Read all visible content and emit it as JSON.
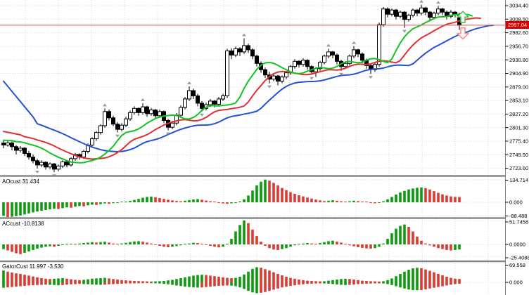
{
  "colors": {
    "background": "#ffffff",
    "grid": "#d9d9d9",
    "axis_line": "#808080",
    "separator": "#828282",
    "text": "#000000",
    "candle_border": "#000000",
    "candle_up_fill": "#ffffff",
    "candle_down_fill": "#000000",
    "jaw_blue": "#2353d4",
    "teeth_red": "#e03030",
    "lips_green": "#12c421",
    "hist_up": "#0d9c0d",
    "hist_down": "#df3a32",
    "price_line": "#e05252",
    "price_tag_bg": "#d40000",
    "price_tag_text": "#ffffff",
    "fractal": "#8a8a8a",
    "arrow_up": "#52c15c",
    "arrow_up_fill": "#f2fff2",
    "arrow_down": "#f49090",
    "arrow_down_fill": "#fff4f4"
  },
  "price_axis": {
    "tick_labels": [
      "3034.40",
      "3008.50",
      "2982.60",
      "2956.70",
      "2930.80",
      "2904.90",
      "2879.00",
      "2853.10",
      "2827.20",
      "2801.30",
      "2775.40",
      "2749.50",
      "2723.60"
    ],
    "current_price_label": "2997.04",
    "current_price": 2997.04
  },
  "indicators": {
    "ao": {
      "label": "AOcust",
      "value": "31.434",
      "axis_labels": [
        "134.714",
        "0.000",
        "-88.488"
      ]
    },
    "ac": {
      "label": "ACcust",
      "value": "-10.8138",
      "axis_labels": [
        "51.7458",
        "0.0000",
        "-25.4088"
      ]
    },
    "gator": {
      "label": "GatorCust",
      "value": "11.997 -3.530",
      "axis_labels": [
        "69.558",
        "0.000"
      ]
    }
  },
  "chart_data": {
    "type": "candlestick",
    "title": "",
    "ylim": [
      2716,
      3036
    ],
    "grid": true,
    "candles_ohlc": [
      [
        2772,
        2776,
        2762,
        2768
      ],
      [
        2768,
        2778,
        2765,
        2772
      ],
      [
        2772,
        2775,
        2758,
        2765
      ],
      [
        2765,
        2768,
        2750,
        2758
      ],
      [
        2758,
        2766,
        2754,
        2762
      ],
      [
        2762,
        2764,
        2747,
        2752
      ],
      [
        2752,
        2757,
        2740,
        2745
      ],
      [
        2745,
        2750,
        2733,
        2738
      ],
      [
        2738,
        2742,
        2723,
        2730
      ],
      [
        2730,
        2739,
        2726,
        2735
      ],
      [
        2735,
        2737,
        2721,
        2726
      ],
      [
        2726,
        2735,
        2722,
        2732
      ],
      [
        2732,
        2734,
        2716,
        2722
      ],
      [
        2722,
        2731,
        2718,
        2728
      ],
      [
        2728,
        2739,
        2724,
        2736
      ],
      [
        2736,
        2738,
        2725,
        2730
      ],
      [
        2730,
        2745,
        2727,
        2742
      ],
      [
        2742,
        2753,
        2738,
        2750
      ],
      [
        2750,
        2752,
        2740,
        2745
      ],
      [
        2745,
        2759,
        2742,
        2756
      ],
      [
        2756,
        2771,
        2752,
        2768
      ],
      [
        2768,
        2783,
        2764,
        2780
      ],
      [
        2780,
        2795,
        2776,
        2792
      ],
      [
        2792,
        2808,
        2788,
        2805
      ],
      [
        2805,
        2838,
        2801,
        2832
      ],
      [
        2832,
        2836,
        2815,
        2820
      ],
      [
        2820,
        2824,
        2804,
        2808
      ],
      [
        2808,
        2812,
        2792,
        2798
      ],
      [
        2798,
        2810,
        2794,
        2806
      ],
      [
        2806,
        2822,
        2802,
        2818
      ],
      [
        2818,
        2834,
        2814,
        2830
      ],
      [
        2830,
        2842,
        2826,
        2838
      ],
      [
        2838,
        2840,
        2824,
        2830
      ],
      [
        2830,
        2848,
        2826,
        2841
      ],
      [
        2841,
        2843,
        2822,
        2828
      ],
      [
        2828,
        2839,
        2824,
        2835
      ],
      [
        2835,
        2837,
        2819,
        2824
      ],
      [
        2824,
        2836,
        2820,
        2832
      ],
      [
        2832,
        2834,
        2810,
        2815
      ],
      [
        2815,
        2818,
        2796,
        2802
      ],
      [
        2802,
        2814,
        2798,
        2810
      ],
      [
        2810,
        2829,
        2806,
        2825
      ],
      [
        2825,
        2844,
        2821,
        2840
      ],
      [
        2840,
        2860,
        2836,
        2856
      ],
      [
        2856,
        2880,
        2852,
        2872
      ],
      [
        2872,
        2876,
        2856,
        2862
      ],
      [
        2862,
        2866,
        2842,
        2848
      ],
      [
        2848,
        2852,
        2832,
        2838
      ],
      [
        2838,
        2849,
        2834,
        2845
      ],
      [
        2845,
        2856,
        2841,
        2852
      ],
      [
        2852,
        2854,
        2840,
        2846
      ],
      [
        2846,
        2860,
        2842,
        2856
      ],
      [
        2856,
        2866,
        2852,
        2862
      ],
      [
        2862,
        2952,
        2858,
        2948
      ],
      [
        2948,
        2953,
        2932,
        2940
      ],
      [
        2940,
        2956,
        2936,
        2952
      ],
      [
        2952,
        2955,
        2938,
        2946
      ],
      [
        2946,
        2972,
        2942,
        2958
      ],
      [
        2958,
        2962,
        2944,
        2950
      ],
      [
        2950,
        2953,
        2932,
        2938
      ],
      [
        2938,
        2941,
        2918,
        2924
      ],
      [
        2924,
        2928,
        2906,
        2912
      ],
      [
        2912,
        2916,
        2896,
        2902
      ],
      [
        2902,
        2908,
        2886,
        2894
      ],
      [
        2894,
        2904,
        2890,
        2900
      ],
      [
        2900,
        2902,
        2882,
        2890
      ],
      [
        2890,
        2901,
        2886,
        2898
      ],
      [
        2898,
        2909,
        2894,
        2906
      ],
      [
        2906,
        2921,
        2902,
        2918
      ],
      [
        2918,
        2932,
        2914,
        2928
      ],
      [
        2928,
        2930,
        2916,
        2922
      ],
      [
        2922,
        2934,
        2918,
        2930
      ],
      [
        2930,
        2932,
        2912,
        2918
      ],
      [
        2918,
        2921,
        2902,
        2908
      ],
      [
        2908,
        2917,
        2898,
        2914
      ],
      [
        2914,
        2929,
        2910,
        2926
      ],
      [
        2926,
        2941,
        2922,
        2938
      ],
      [
        2938,
        2952,
        2934,
        2946
      ],
      [
        2946,
        2948,
        2934,
        2940
      ],
      [
        2940,
        2943,
        2922,
        2928
      ],
      [
        2928,
        2931,
        2910,
        2918
      ],
      [
        2918,
        2927,
        2914,
        2924
      ],
      [
        2924,
        2941,
        2920,
        2938
      ],
      [
        2938,
        2957,
        2934,
        2950
      ],
      [
        2950,
        2952,
        2936,
        2942
      ],
      [
        2942,
        2945,
        2924,
        2930
      ],
      [
        2930,
        2933,
        2914,
        2920
      ],
      [
        2920,
        2924,
        2904,
        2912
      ],
      [
        2912,
        2925,
        2908,
        2922
      ],
      [
        2922,
        3002,
        2918,
        2998
      ],
      [
        2998,
        3032,
        2994,
        3028
      ],
      [
        3028,
        3031,
        3012,
        3018
      ],
      [
        3018,
        3029,
        3014,
        3026
      ],
      [
        3026,
        3028,
        3008,
        3014
      ],
      [
        3014,
        3025,
        3010,
        3022
      ],
      [
        3022,
        3024,
        2992,
        3008
      ],
      [
        3008,
        3019,
        3004,
        3016
      ],
      [
        3016,
        3029,
        3012,
        3026
      ],
      [
        3026,
        3028,
        3014,
        3020
      ],
      [
        3020,
        3036,
        3016,
        3030
      ],
      [
        3030,
        3032,
        3016,
        3022
      ],
      [
        3022,
        3024,
        3006,
        3012
      ],
      [
        3012,
        3023,
        3008,
        3020
      ],
      [
        3020,
        3034,
        3016,
        3028
      ],
      [
        3028,
        3030,
        3016,
        3022
      ],
      [
        3022,
        3025,
        3008,
        3014
      ],
      [
        3014,
        3026,
        3010,
        3022
      ],
      [
        3022,
        3024,
        3012,
        3018
      ],
      [
        3018,
        3021,
        2988,
        2997.04
      ]
    ],
    "alligator": {
      "jaw": {
        "period": 13,
        "shift": 8,
        "seed": 2812,
        "preslope": 1.5
      },
      "teeth": {
        "period": 8,
        "shift": 5,
        "seed": 2786,
        "preslope": 0.4
      },
      "lips": {
        "period": 5,
        "shift": 3,
        "seed": 2776,
        "preslope": 0.15
      }
    },
    "fractals_up": [
      24,
      33,
      44,
      57,
      77,
      83,
      99,
      103
    ],
    "fractals_down": [
      8,
      12,
      27,
      39,
      47,
      63,
      73,
      80,
      87,
      95
    ],
    "signal_arrows": [
      {
        "dir": "up",
        "price": 3012
      },
      {
        "dir": "down",
        "price": 2982
      }
    ],
    "ao_values": [
      -80,
      -88.5,
      -86,
      -82,
      -78,
      -72,
      -66,
      -60,
      -55,
      -50,
      -46,
      -42,
      -38,
      -40,
      -35,
      -30,
      -32,
      -26,
      -22,
      -24,
      -18,
      -14,
      -16,
      -11,
      -7,
      -9,
      -5,
      -2,
      1,
      4,
      8,
      14,
      20,
      27,
      32,
      34,
      30,
      25,
      20,
      15,
      11,
      8,
      6,
      9,
      13,
      17,
      19,
      15,
      10,
      6,
      2,
      -3,
      -7,
      -9,
      -6,
      -2,
      5,
      18,
      40,
      70,
      100,
      122,
      134.714,
      128,
      115,
      100,
      85,
      72,
      60,
      50,
      42,
      35,
      28,
      22,
      16,
      11,
      7,
      9,
      12,
      9,
      6,
      3,
      6,
      9,
      7,
      4,
      1,
      -3,
      -6,
      -2,
      6,
      18,
      32,
      46,
      58,
      68,
      76,
      82,
      86,
      88,
      84,
      76,
      66,
      56,
      47,
      40,
      35,
      32,
      31.434
    ],
    "ac_values": [
      -10,
      -13,
      -16,
      -19,
      -21,
      -18,
      -15,
      -12,
      -9,
      -7,
      -5,
      -4,
      -5,
      -3,
      -1,
      0.5,
      1.5,
      1,
      2,
      3,
      4,
      5,
      4,
      5,
      6,
      4,
      2,
      1,
      2,
      3.5,
      5,
      6.5,
      7,
      6,
      4,
      2,
      -1,
      -3,
      -5,
      -6,
      -5,
      -3.5,
      -2,
      0,
      2,
      3.5,
      3,
      1,
      -1,
      -3,
      -5,
      -6.5,
      -5,
      0,
      12,
      28,
      42,
      51.7458,
      46,
      32,
      18,
      6,
      -3,
      -8,
      -11,
      -12,
      -10,
      -8,
      -5,
      -2,
      0,
      2,
      3,
      2,
      1,
      3,
      5,
      7,
      8,
      6,
      4,
      1,
      -2,
      -4,
      -6,
      -7.5,
      -8.5,
      -9,
      -8,
      -5,
      2,
      12,
      24,
      34,
      40,
      43,
      38,
      28,
      17,
      8,
      2,
      -2,
      -5,
      -8,
      -10,
      -12,
      -13,
      -12,
      -10.8138
    ],
    "gator_upper": [
      42,
      38,
      35,
      32,
      30,
      27,
      24,
      21,
      18,
      15,
      13,
      12,
      13,
      14,
      15,
      13,
      11,
      9,
      8,
      9,
      11,
      13,
      14,
      15,
      16,
      14,
      12,
      10,
      8,
      7,
      6,
      5,
      4.5,
      4,
      3.5,
      3,
      3.5,
      4,
      5,
      7,
      9,
      12,
      15,
      18,
      21,
      24,
      26,
      27,
      26,
      24,
      22,
      20,
      18,
      16,
      15,
      16,
      20,
      28,
      38,
      48,
      54,
      52,
      47,
      42,
      36,
      30,
      25,
      20,
      16,
      13,
      10,
      8,
      6,
      5,
      4,
      3.5,
      4,
      6,
      8,
      10,
      12,
      13,
      12,
      10,
      8,
      6,
      5,
      4,
      3.5,
      3,
      4,
      8,
      14,
      22,
      30,
      38,
      45,
      50,
      52,
      50,
      46,
      41,
      36,
      30,
      25,
      20,
      16,
      13,
      11.997
    ],
    "gator_lower": [
      -14,
      -13,
      -12,
      -11,
      -10,
      -9,
      -8,
      -7.5,
      -7,
      -6.5,
      -6,
      -6.5,
      -7,
      -7.5,
      -7,
      -6,
      -5,
      -4.5,
      -4,
      -4.5,
      -5,
      -5.5,
      -6,
      -6.5,
      -6,
      -5,
      -4.5,
      -4,
      -3.5,
      -3,
      -2.8,
      -2.6,
      -2.4,
      -2.2,
      -2,
      -2.2,
      -2.5,
      -3,
      -4,
      -5,
      -6.5,
      -8,
      -9.5,
      -11,
      -12,
      -13,
      -13.5,
      -13,
      -12,
      -11,
      -10,
      -9,
      -8.5,
      -8,
      -8.5,
      -10,
      -13,
      -17,
      -22,
      -26,
      -28,
      -27,
      -25,
      -22,
      -19,
      -16,
      -13,
      -11,
      -9,
      -7.5,
      -6,
      -5,
      -4,
      -3.5,
      -3,
      -2.8,
      -3,
      -3.5,
      -4.5,
      -5.5,
      -6.5,
      -7,
      -6.5,
      -5.5,
      -4.5,
      -4,
      -3.5,
      -3,
      -2.8,
      -2.6,
      -3,
      -4.5,
      -7,
      -10,
      -13,
      -16,
      -18.5,
      -20,
      -20.5,
      -20,
      -18,
      -16,
      -14,
      -12,
      -10,
      -8,
      -6,
      -4.5,
      -3.53
    ]
  }
}
